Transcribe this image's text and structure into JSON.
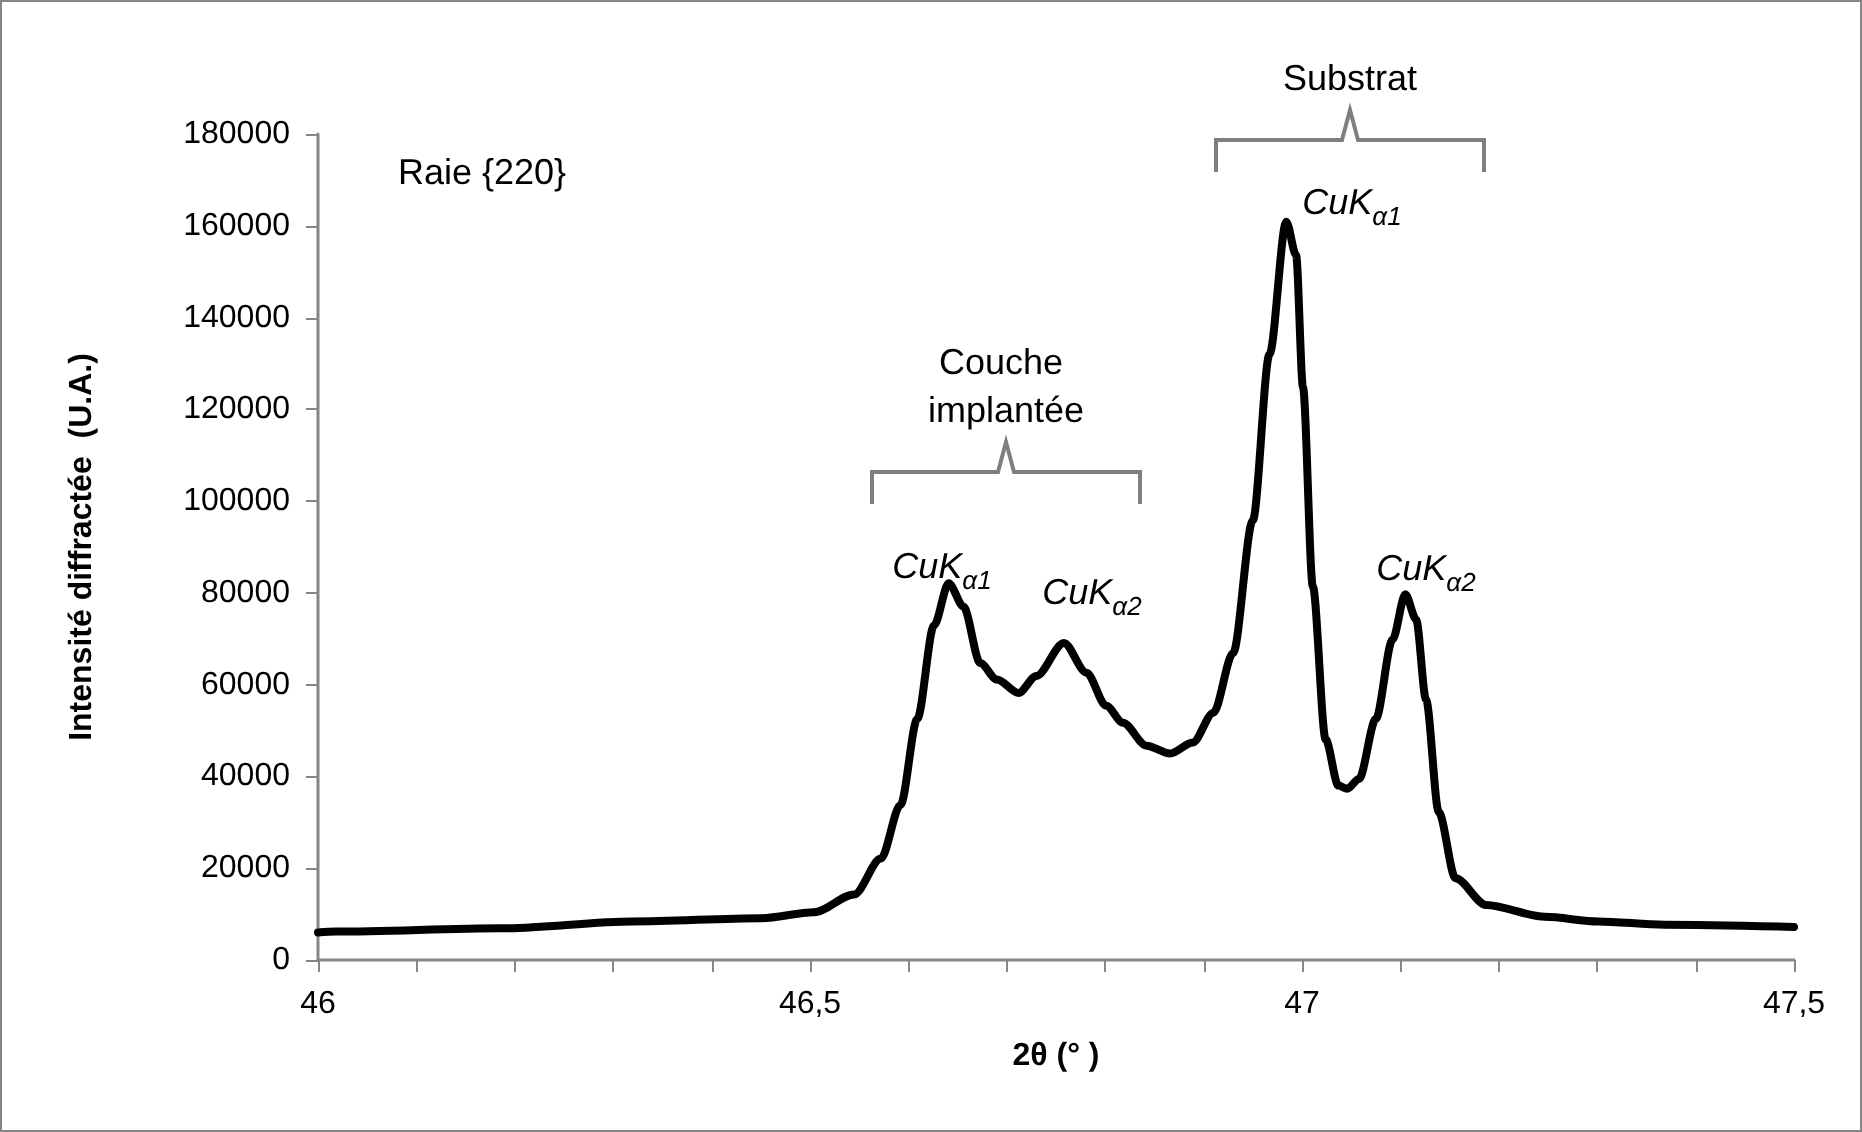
{
  "chart_data": {
    "type": "line",
    "xlabel": "2θ (° )",
    "ylabel": "Intensité diffractée  (U.A.)",
    "xlim": [
      46,
      47.5
    ],
    "ylim": [
      0,
      180000
    ],
    "xticks": [
      46,
      {
        "value": 46.1,
        "label": null
      },
      {
        "value": 46.2,
        "label": null
      },
      {
        "value": 46.3,
        "label": null
      },
      {
        "value": 46.4,
        "label": null
      },
      {
        "value": 46.5,
        "label": "46,5"
      },
      {
        "value": 46.6,
        "label": null
      },
      {
        "value": 46.7,
        "label": null
      },
      {
        "value": 46.8,
        "label": null
      },
      {
        "value": 46.9,
        "label": null
      },
      47,
      {
        "value": 47.1,
        "label": null
      },
      {
        "value": 47.2,
        "label": null
      },
      {
        "value": 47.3,
        "label": null
      },
      {
        "value": 47.4,
        "label": null
      },
      {
        "value": 47.5,
        "label": "47,5"
      }
    ],
    "yticks": [
      0,
      20000,
      40000,
      60000,
      80000,
      100000,
      120000,
      140000,
      160000,
      180000
    ],
    "grid": false,
    "marker": "none",
    "line_style": "solid",
    "series": [
      {
        "color": "#000000",
        "x": [
          46,
          46.018,
          46.186,
          46.32,
          46.45,
          46.504,
          46.545,
          46.572,
          46.592,
          46.609,
          46.626,
          46.641,
          46.656,
          46.673,
          46.69,
          46.712,
          46.73,
          46.758,
          46.781,
          46.801,
          46.818,
          46.842,
          46.866,
          46.889,
          46.91,
          46.93,
          46.95,
          46.967,
          46.984,
          46.994,
          47.001,
          47.011,
          47.024,
          47.037,
          47.046,
          47.058,
          47.075,
          47.092,
          47.105,
          47.116,
          47.126,
          47.139,
          47.156,
          47.187,
          47.247,
          47.301,
          47.368,
          47.5
        ],
        "values": [
          6000,
          6200,
          6900,
          8400,
          9100,
          10400,
          14300,
          22100,
          33800,
          52500,
          72900,
          82100,
          77000,
          64700,
          61100,
          58200,
          61900,
          69100,
          62600,
          55400,
          51700,
          46700,
          45000,
          47400,
          53900,
          66900,
          95800,
          132000,
          160900,
          153600,
          124800,
          81400,
          48100,
          38000,
          37300,
          39500,
          52500,
          69800,
          79700,
          74200,
          56800,
          32200,
          17800,
          12000,
          9400,
          8400,
          7700,
          7200
        ]
      }
    ],
    "annotations": [
      "Raie {220}",
      "Couche implantée",
      "Substrat",
      "CuK$_{α1}$",
      "CuK$_{α2}$",
      "CuK$_{α1}$",
      "CuK$_{α2}$"
    ]
  }
}
